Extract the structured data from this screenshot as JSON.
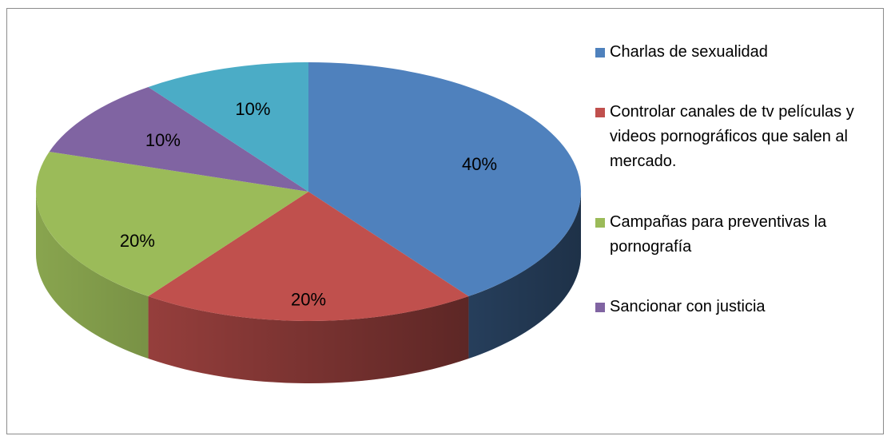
{
  "chart_data": {
    "type": "pie",
    "three_d": true,
    "categories": [
      "Charlas de sexualidad",
      "Controlar canales de tv películas y videos pornográficos que salen al mercado.",
      "Campañas para preventivas la pornografía",
      "Sancionar con justicia",
      null
    ],
    "values": [
      40,
      20,
      20,
      10,
      10
    ],
    "value_labels": [
      "40%",
      "20%",
      "20%",
      "10%",
      "10%"
    ],
    "colors": [
      "#4f81bd",
      "#c0504d",
      "#9bbb59",
      "#8064a2",
      "#4bacc6"
    ],
    "legend": "right"
  }
}
